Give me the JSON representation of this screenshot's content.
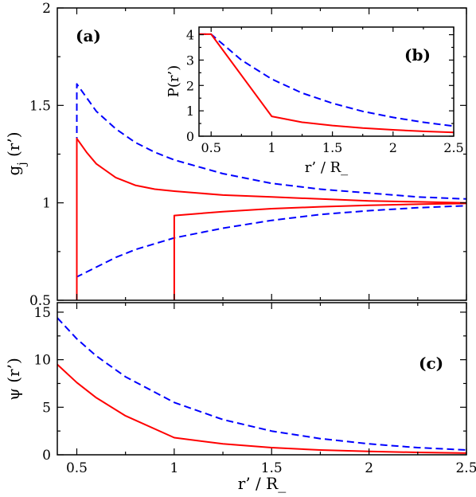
{
  "chart_data": [
    {
      "id": "a",
      "type": "line",
      "panel_label": "(a)",
      "ylabel": "g_j (r’)",
      "ylabel_main": "g",
      "ylabel_sub": "j",
      "ylabel_rest": " (r’)",
      "xlabel": "",
      "xlim": [
        0.4,
        2.5
      ],
      "ylim": [
        0.5,
        2.0
      ],
      "xticks": [
        0.5,
        1,
        1.5,
        2,
        2.5
      ],
      "yticks": [
        0.5,
        1,
        1.5,
        2
      ],
      "ytick_labels": [
        "0.5",
        "1",
        "1.5",
        "2"
      ],
      "series": [
        {
          "style": "dashed",
          "color": "#0000ff",
          "x": [
            0.5,
            0.5,
            0.6,
            0.7,
            0.8,
            0.9,
            1.0,
            1.25,
            1.5,
            1.75,
            2.0,
            2.25,
            2.5
          ],
          "y": [
            0.5,
            1.61,
            1.47,
            1.38,
            1.31,
            1.26,
            1.22,
            1.15,
            1.1,
            1.07,
            1.05,
            1.03,
            1.02
          ]
        },
        {
          "style": "dashed",
          "color": "#0000ff",
          "x": [
            0.5,
            0.5,
            0.6,
            0.7,
            0.8,
            0.9,
            1.0,
            1.25,
            1.5,
            1.75,
            2.0,
            2.25,
            2.5
          ],
          "y": [
            0.5,
            0.62,
            0.67,
            0.72,
            0.76,
            0.79,
            0.82,
            0.87,
            0.91,
            0.94,
            0.96,
            0.975,
            0.985
          ]
        },
        {
          "style": "solid",
          "color": "#ff0000",
          "x": [
            0.5,
            0.5,
            0.55,
            0.6,
            0.7,
            0.8,
            0.9,
            1.0,
            1.25,
            1.5,
            1.75,
            2.0,
            2.25,
            2.5
          ],
          "y": [
            0.5,
            1.33,
            1.26,
            1.2,
            1.13,
            1.09,
            1.07,
            1.06,
            1.04,
            1.03,
            1.02,
            1.01,
            1.005,
            1.0
          ]
        },
        {
          "style": "solid",
          "color": "#ff0000",
          "x": [
            1.0,
            1.0,
            1.25,
            1.5,
            1.75,
            2.0,
            2.25,
            2.5
          ],
          "y": [
            0.5,
            0.935,
            0.955,
            0.97,
            0.98,
            0.987,
            0.993,
            0.997
          ]
        }
      ]
    },
    {
      "id": "b",
      "type": "line",
      "panel_label": "(b)",
      "ylabel": "P(r’)",
      "xlabel": "r’ / R_",
      "xlim": [
        0.4,
        2.5
      ],
      "ylim": [
        0,
        4.3
      ],
      "xticks": [
        0.5,
        1,
        1.5,
        2,
        2.5
      ],
      "xtick_labels": [
        "0.5",
        "1",
        "1.5",
        "2",
        "2.5"
      ],
      "yticks": [
        0,
        1,
        2,
        3,
        4
      ],
      "ytick_labels": [
        "0",
        "1",
        "2",
        "3",
        "4"
      ],
      "series": [
        {
          "style": "dashed",
          "color": "#0000ff",
          "x": [
            0.4,
            0.5,
            0.75,
            1.0,
            1.25,
            1.5,
            1.75,
            2.0,
            2.25,
            2.5
          ],
          "y": [
            4.02,
            4.02,
            3.0,
            2.25,
            1.7,
            1.3,
            0.98,
            0.74,
            0.55,
            0.4
          ]
        },
        {
          "style": "solid",
          "color": "#ff0000",
          "x": [
            0.4,
            0.5,
            1.0,
            1.25,
            1.5,
            1.75,
            2.0,
            2.25,
            2.5
          ],
          "y": [
            4.02,
            4.02,
            0.78,
            0.55,
            0.42,
            0.32,
            0.25,
            0.19,
            0.15
          ]
        }
      ]
    },
    {
      "id": "c",
      "type": "line",
      "panel_label": "(c)",
      "ylabel": "ψ (r’)",
      "xlabel": "r’ / R_",
      "xlim": [
        0.4,
        2.5
      ],
      "ylim": [
        0,
        16
      ],
      "xticks": [
        0.5,
        1,
        1.5,
        2,
        2.5
      ],
      "xtick_labels": [
        "0.5",
        "1",
        "1.5",
        "2",
        "2.5"
      ],
      "yticks": [
        0,
        5,
        10,
        15
      ],
      "ytick_labels": [
        "0",
        "5",
        "10",
        "15"
      ],
      "series": [
        {
          "style": "dashed",
          "color": "#0000ff",
          "x": [
            0.4,
            0.5,
            0.6,
            0.75,
            1.0,
            1.25,
            1.5,
            1.75,
            2.0,
            2.25,
            2.5
          ],
          "y": [
            14.4,
            12.2,
            10.4,
            8.2,
            5.5,
            3.7,
            2.5,
            1.7,
            1.15,
            0.75,
            0.5
          ]
        },
        {
          "style": "solid",
          "color": "#ff0000",
          "x": [
            0.4,
            0.5,
            0.6,
            0.75,
            1.0,
            1.25,
            1.5,
            1.75,
            2.0,
            2.25,
            2.5
          ],
          "y": [
            9.5,
            7.6,
            6.0,
            4.1,
            1.8,
            1.15,
            0.75,
            0.5,
            0.35,
            0.25,
            0.18
          ]
        }
      ]
    }
  ]
}
